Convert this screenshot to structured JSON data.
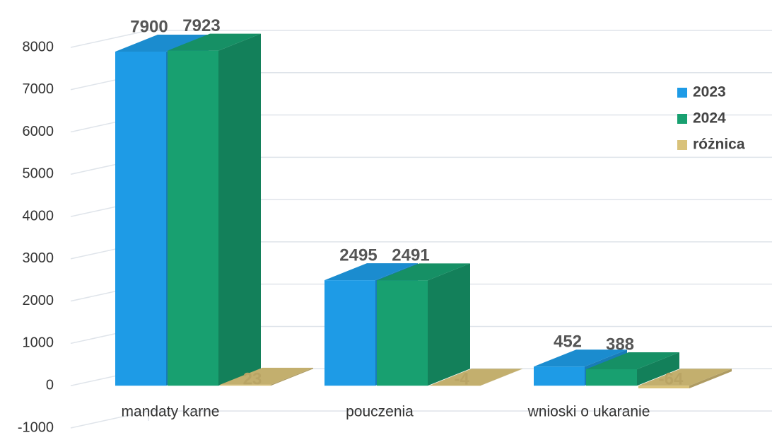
{
  "chart_data": {
    "type": "bar3d",
    "categories": [
      "mandaty karne",
      "pouczenia",
      "wnioski o ukaranie"
    ],
    "series": [
      {
        "name": "2023",
        "color": "#1e9be6",
        "values": [
          7900,
          2495,
          452
        ]
      },
      {
        "name": "2024",
        "color": "#18a070",
        "values": [
          7923,
          2491,
          388
        ]
      },
      {
        "name": "różnica",
        "color": "#d9c27a",
        "values": [
          23,
          -4,
          -64
        ]
      }
    ],
    "ylim": [
      -1000,
      8000
    ],
    "yticks": [
      -1000,
      0,
      1000,
      2000,
      3000,
      4000,
      5000,
      6000,
      7000,
      8000
    ],
    "grid": true,
    "legend": "right"
  }
}
